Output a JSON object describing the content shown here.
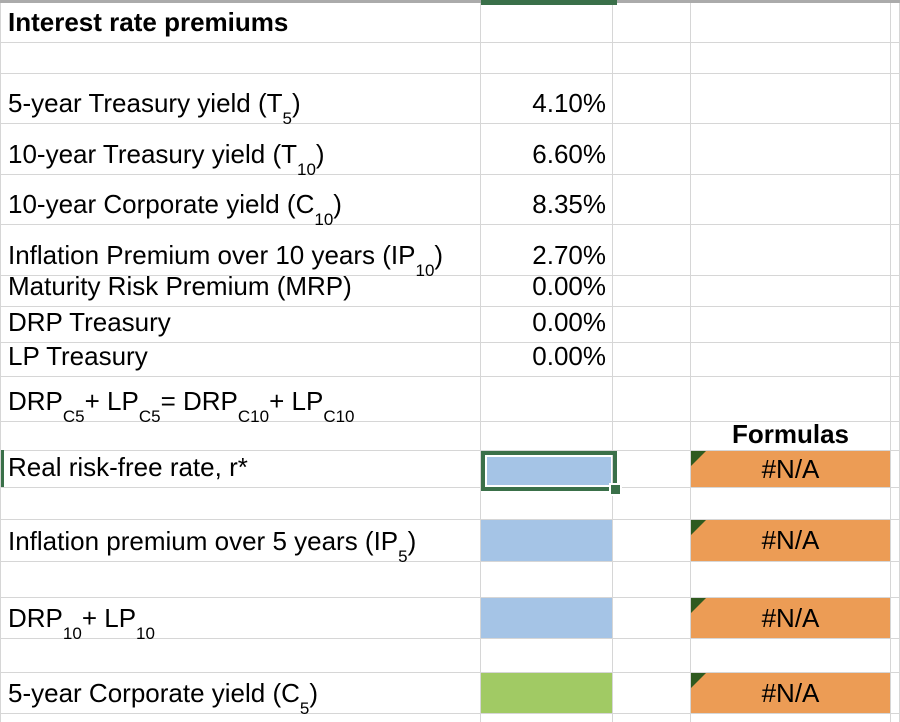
{
  "sheet_title": "Interest rate premiums",
  "na_text": "#N/A",
  "colors": {
    "blue": "#A5C4E6",
    "green": "#A1CA64",
    "orange": "#EC9C55",
    "selection_green": "#3A7049",
    "triangle_green": "#2F5A1F",
    "gridline": "#D6D6D6",
    "header_bar_gray": "#ABABAB"
  },
  "rows": [
    {
      "kind": "title",
      "bold": true,
      "label": [
        {
          "t": "Interest rate premiums"
        }
      ]
    },
    {
      "kind": "empty"
    },
    {
      "kind": "data",
      "label": [
        {
          "t": "5-year Treasury yield (T"
        },
        {
          "t": "5",
          "sub": true
        },
        {
          "t": ")"
        }
      ],
      "value": "4.10%"
    },
    {
      "kind": "data",
      "label": [
        {
          "t": "10-year Treasury yield (T"
        },
        {
          "t": "10",
          "sub": true
        },
        {
          "t": ")"
        }
      ],
      "value": "6.60%"
    },
    {
      "kind": "data",
      "label": [
        {
          "t": "10-year Corporate yield (C"
        },
        {
          "t": "10",
          "sub": true
        },
        {
          "t": ")"
        }
      ],
      "value": "8.35%"
    },
    {
      "kind": "data",
      "label": [
        {
          "t": "Inflation Premium over 10 years (IP"
        },
        {
          "t": "10",
          "sub": true
        },
        {
          "t": ")"
        }
      ],
      "value": "2.70%"
    },
    {
      "kind": "data",
      "label": [
        {
          "t": "Maturity Risk Premium (MRP)"
        }
      ],
      "value": "0.00%"
    },
    {
      "kind": "data",
      "label": [
        {
          "t": "DRP Treasury"
        }
      ],
      "value": "0.00%"
    },
    {
      "kind": "data",
      "label": [
        {
          "t": "LP Treasury"
        }
      ],
      "value": "0.00%"
    },
    {
      "kind": "note",
      "label": [
        {
          "t": "DRP"
        },
        {
          "t": "C5",
          "sub": true
        },
        {
          "t": " + LP"
        },
        {
          "t": "C5",
          "sub": true
        },
        {
          "t": " = DRP"
        },
        {
          "t": "C10",
          "sub": true
        },
        {
          "t": " + LP"
        },
        {
          "t": "C10",
          "sub": true
        }
      ]
    },
    {
      "kind": "header",
      "header": "Formulas"
    },
    {
      "kind": "input",
      "label": [
        {
          "t": "Real risk-free rate, r*"
        }
      ],
      "fill": "blue",
      "selected": true,
      "row_indicator": true,
      "na": true
    },
    {
      "kind": "empty"
    },
    {
      "kind": "input",
      "label": [
        {
          "t": "Inflation premium over 5 years (IP"
        },
        {
          "t": "5",
          "sub": true
        },
        {
          "t": ")"
        }
      ],
      "fill": "blue",
      "na": true
    },
    {
      "kind": "empty"
    },
    {
      "kind": "input",
      "label": [
        {
          "t": "DRP"
        },
        {
          "t": "10",
          "sub": true
        },
        {
          "t": " + LP"
        },
        {
          "t": "10",
          "sub": true
        }
      ],
      "fill": "blue",
      "na": true
    },
    {
      "kind": "empty"
    },
    {
      "kind": "input",
      "label": [
        {
          "t": "5-year Corporate yield (C"
        },
        {
          "t": "5",
          "sub": true
        },
        {
          "t": ")"
        }
      ],
      "fill": "green",
      "na": true
    },
    {
      "kind": "empty"
    }
  ]
}
